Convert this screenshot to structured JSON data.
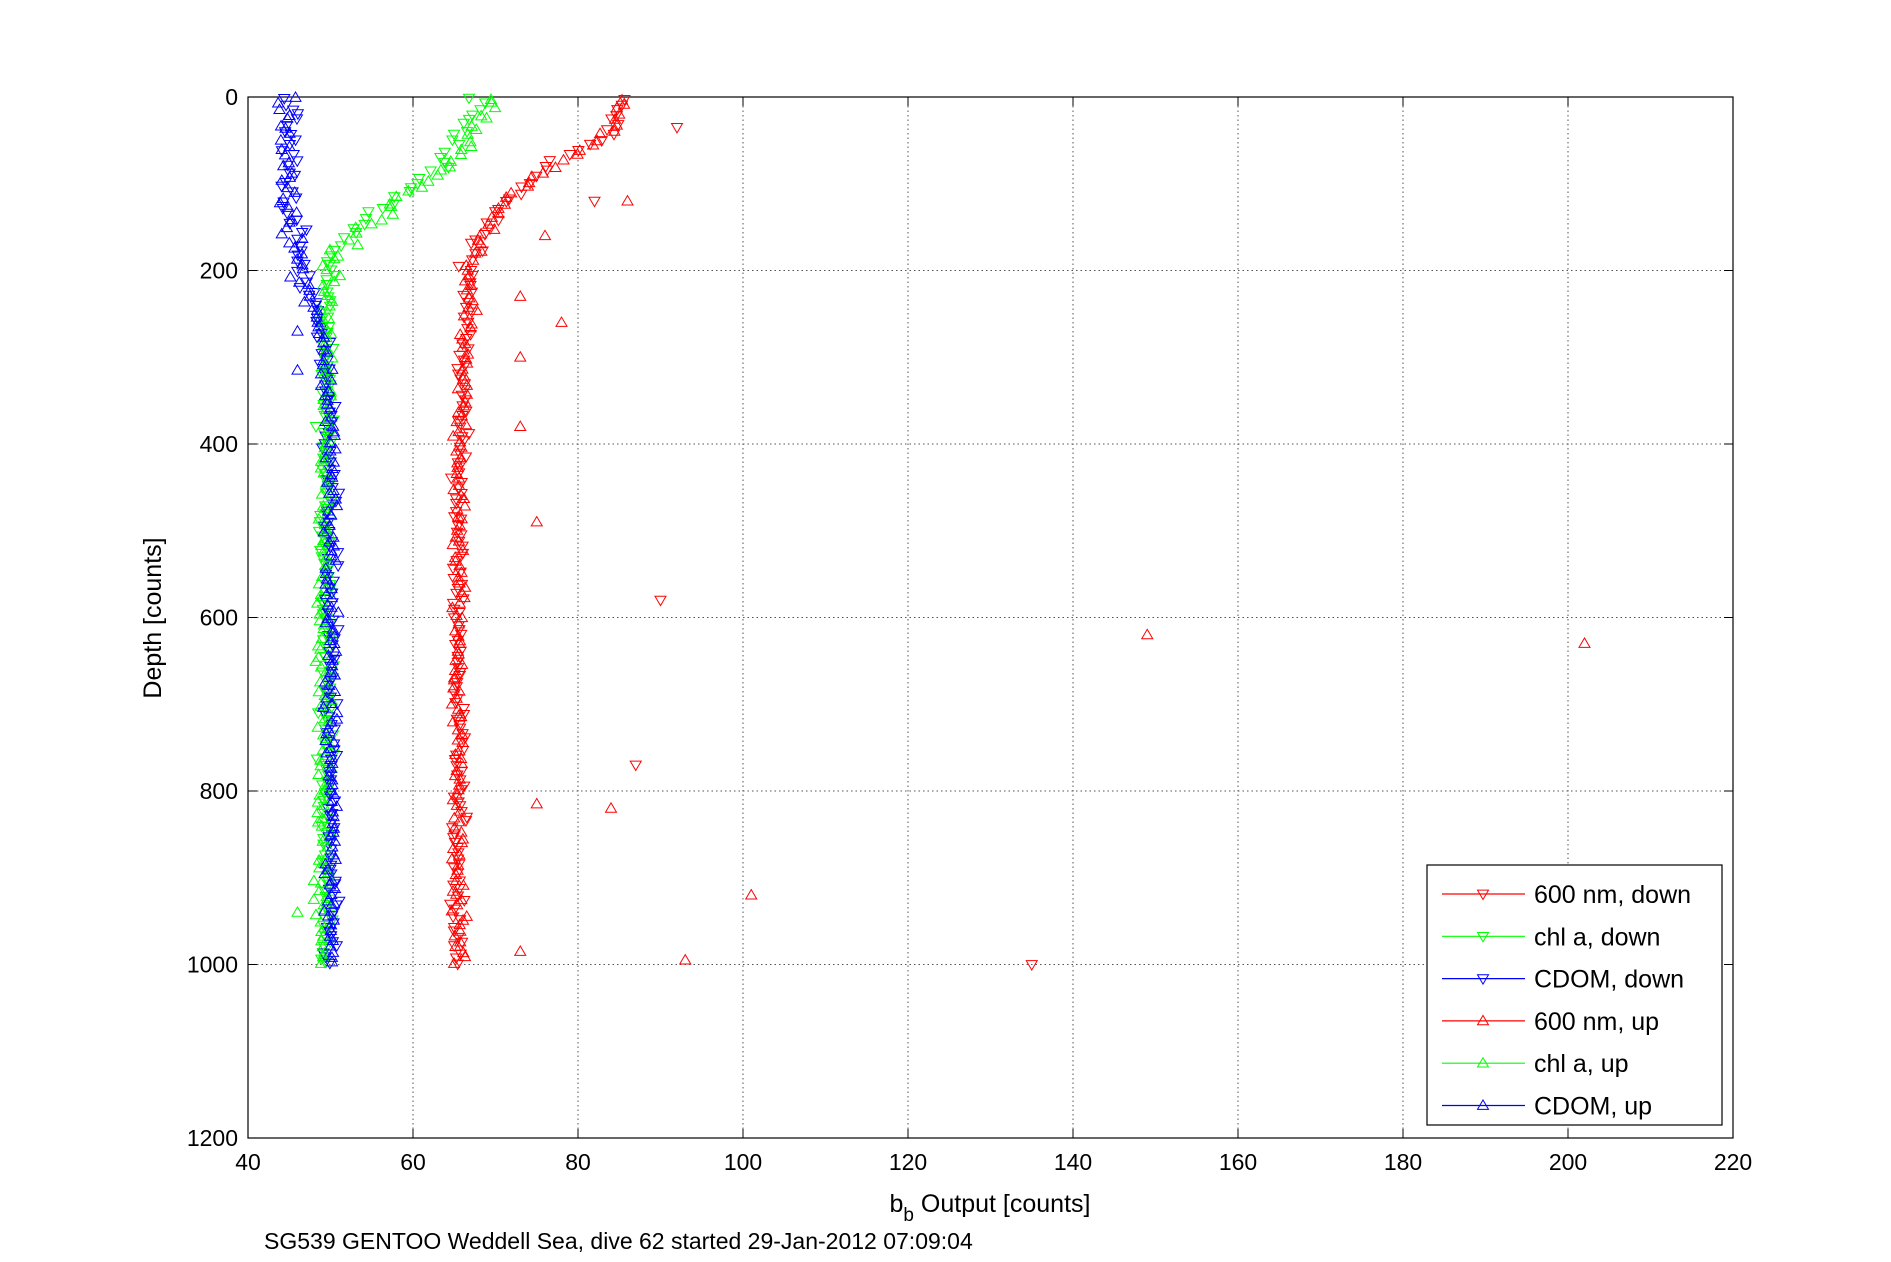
{
  "chart_data": {
    "type": "scatter",
    "xlabel_main": "b",
    "xlabel_sub": "b",
    "xlabel_rest": " Output [counts]",
    "ylabel": "Depth [counts]",
    "caption": "SG539 GENTOO Weddell Sea, dive 62 started 29-Jan-2012 07:09:04",
    "xlim": [
      40,
      220
    ],
    "ylim": [
      0,
      1200
    ],
    "y_reversed": true,
    "xticks": [
      "40",
      "60",
      "80",
      "100",
      "120",
      "140",
      "160",
      "180",
      "200",
      "220"
    ],
    "yticks": [
      "0",
      "200",
      "400",
      "600",
      "800",
      "1000",
      "1200"
    ],
    "grid": true,
    "legend_position": "bottom-right",
    "series": [
      {
        "name": "600 nm, down",
        "color": "#ff0000",
        "marker": "triangle-down",
        "direction": "down",
        "profile": [
          [
            0,
            85
          ],
          [
            40,
            84
          ],
          [
            80,
            76
          ],
          [
            120,
            71
          ],
          [
            160,
            68
          ],
          [
            200,
            67
          ],
          [
            300,
            66
          ],
          [
            500,
            65.5
          ],
          [
            800,
            65.5
          ],
          [
            1000,
            65.5
          ]
        ],
        "outliers": [
          [
            35,
            92
          ],
          [
            120,
            82
          ],
          [
            580,
            90
          ],
          [
            770,
            87
          ],
          [
            1000,
            135
          ]
        ]
      },
      {
        "name": "chl a, down",
        "color": "#00ff00",
        "marker": "triangle-down",
        "direction": "down",
        "profile": [
          [
            0,
            68
          ],
          [
            60,
            65
          ],
          [
            100,
            60
          ],
          [
            140,
            54
          ],
          [
            180,
            50
          ],
          [
            220,
            49.5
          ],
          [
            300,
            49.5
          ],
          [
            1000,
            49.5
          ]
        ],
        "outliers": []
      },
      {
        "name": "CDOM, down",
        "color": "#0000ff",
        "marker": "triangle-down",
        "direction": "down",
        "profile": [
          [
            0,
            45
          ],
          [
            100,
            45
          ],
          [
            200,
            46.5
          ],
          [
            250,
            48.5
          ],
          [
            300,
            49.5
          ],
          [
            400,
            50
          ],
          [
            1000,
            50
          ]
        ],
        "outliers": []
      },
      {
        "name": "600 nm, up",
        "color": "#ff0000",
        "marker": "triangle-up",
        "direction": "up",
        "profile": [
          [
            0,
            85
          ],
          [
            40,
            84
          ],
          [
            80,
            76
          ],
          [
            120,
            71
          ],
          [
            160,
            68
          ],
          [
            200,
            67
          ],
          [
            300,
            66
          ],
          [
            500,
            65.5
          ],
          [
            800,
            65.5
          ],
          [
            1000,
            65.5
          ]
        ],
        "outliers": [
          [
            120,
            86
          ],
          [
            160,
            76
          ],
          [
            230,
            73
          ],
          [
            260,
            78
          ],
          [
            300,
            73
          ],
          [
            380,
            73
          ],
          [
            490,
            75
          ],
          [
            620,
            149
          ],
          [
            630,
            202
          ],
          [
            815,
            75
          ],
          [
            820,
            84
          ],
          [
            920,
            101
          ],
          [
            985,
            73
          ],
          [
            995,
            93
          ]
        ]
      },
      {
        "name": "chl a, up",
        "color": "#00ff00",
        "marker": "triangle-up",
        "direction": "up",
        "profile": [
          [
            0,
            70
          ],
          [
            60,
            66
          ],
          [
            100,
            61
          ],
          [
            140,
            55
          ],
          [
            180,
            50.5
          ],
          [
            220,
            49.5
          ],
          [
            300,
            49.5
          ],
          [
            1000,
            49
          ]
        ],
        "outliers": [
          [
            940,
            46
          ]
        ]
      },
      {
        "name": "CDOM, up",
        "color": "#0000ff",
        "marker": "triangle-up",
        "direction": "up",
        "profile": [
          [
            0,
            44
          ],
          [
            100,
            45
          ],
          [
            200,
            46
          ],
          [
            250,
            48.5
          ],
          [
            300,
            49.5
          ],
          [
            400,
            50
          ],
          [
            1000,
            50
          ]
        ],
        "outliers": [
          [
            270,
            46
          ],
          [
            315,
            46
          ]
        ]
      }
    ]
  }
}
